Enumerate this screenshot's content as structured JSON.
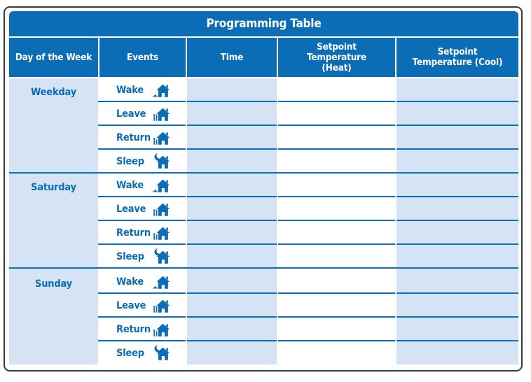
{
  "table": {
    "title": "Programming Table",
    "headers": {
      "day": "Day of the Week",
      "events": "Events",
      "time": "Time",
      "heat": "Setpoint Temperature (Heat)",
      "cool": "Setpoint Temperature (Cool)"
    },
    "groups": [
      {
        "day": "Weekday",
        "events": [
          {
            "label": "Wake",
            "icon": "wake-house-icon"
          },
          {
            "label": "Leave",
            "icon": "leave-house-icon"
          },
          {
            "label": "Return",
            "icon": "return-house-icon"
          },
          {
            "label": "Sleep",
            "icon": "sleep-house-icon"
          }
        ]
      },
      {
        "day": "Saturday",
        "events": [
          {
            "label": "Wake",
            "icon": "wake-house-icon"
          },
          {
            "label": "Leave",
            "icon": "leave-house-icon"
          },
          {
            "label": "Return",
            "icon": "return-house-icon"
          },
          {
            "label": "Sleep",
            "icon": "sleep-house-icon"
          }
        ]
      },
      {
        "day": "Sunday",
        "events": [
          {
            "label": "Wake",
            "icon": "wake-house-icon"
          },
          {
            "label": "Leave",
            "icon": "leave-house-icon"
          },
          {
            "label": "Return",
            "icon": "return-house-icon"
          },
          {
            "label": "Sleep",
            "icon": "sleep-house-icon"
          }
        ]
      }
    ]
  },
  "colors": {
    "accent": "#0a6db5",
    "light_fill": "#d6e3f4",
    "frame": "#3a3a3a"
  }
}
